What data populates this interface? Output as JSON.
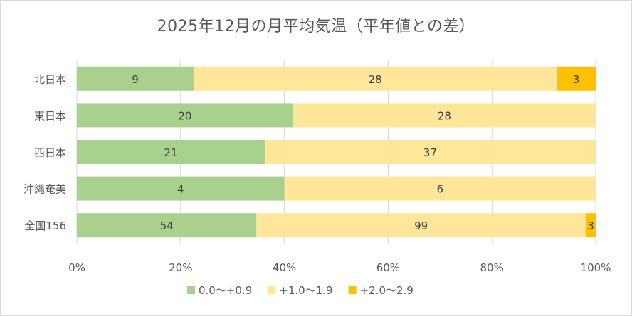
{
  "chart_data": {
    "type": "bar",
    "orientation": "horizontal",
    "stacked": "percent",
    "title": "2025年12月の月平均気温（平年値との差）",
    "categories": [
      "北日本",
      "東日本",
      "西日本",
      "沖縄奄美",
      "全国156"
    ],
    "series": [
      {
        "name": "0.0～+0.9",
        "color": "#a9d18e",
        "values": [
          9,
          20,
          21,
          4,
          54
        ]
      },
      {
        "name": "+1.0～1.9",
        "color": "#ffe699",
        "values": [
          28,
          28,
          37,
          6,
          99
        ]
      },
      {
        "name": "+2.0～2.9",
        "color": "#ffc000",
        "values": [
          3,
          0,
          0,
          0,
          3
        ]
      }
    ],
    "x_ticks": [
      "0%",
      "20%",
      "40%",
      "60%",
      "80%",
      "100%"
    ],
    "xlim": [
      0,
      100
    ],
    "grid": true,
    "legend_position": "bottom"
  },
  "colors": {
    "text": "#595959",
    "grid": "#d9d9d9",
    "border": "#d9d9d9"
  }
}
